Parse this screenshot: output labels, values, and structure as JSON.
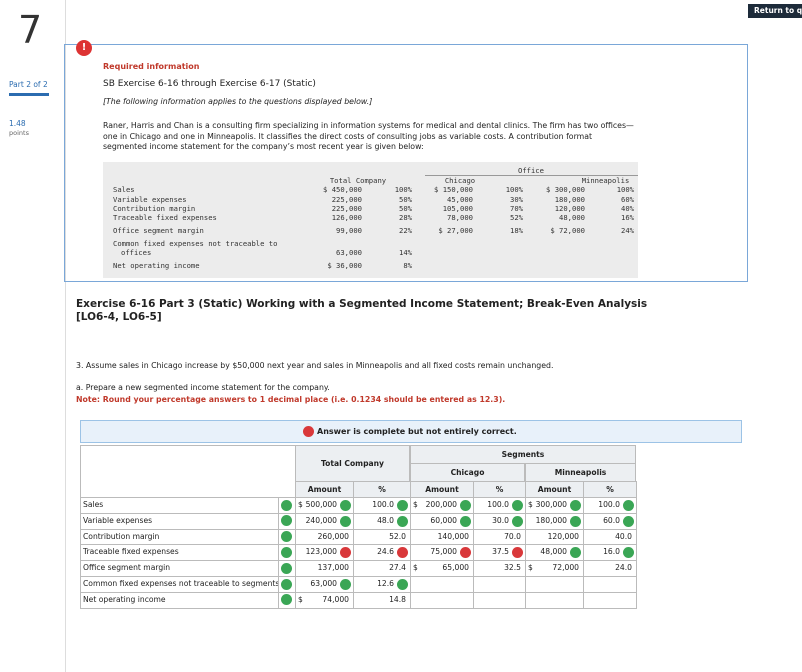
{
  "sidebar": {
    "question_number": "7",
    "part": "Part 2 of 2",
    "points_value": "1.48",
    "points_label": "points"
  },
  "header": {
    "return_button": "Return to qu"
  },
  "info": {
    "icon": "!",
    "label": "Required information",
    "title": "SB Exercise 6-16 through Exercise 6-17 (Static)",
    "subtitle": "[The following information applies to the questions displayed below.]",
    "paragraph": "Raner, Harris and Chan is a consulting firm specializing in information systems for medical and dental clinics. The firm has two offices—one in Chicago and one in Minneapolis. It classifies the direct costs of consulting jobs as variable costs. A contribution format segmented income statement for the company’s most recent year is given below:",
    "given_table": {
      "group_header": "Office",
      "headers": [
        "Total Company",
        "Chicago",
        "Minneapolis"
      ],
      "rows": [
        {
          "label": "Sales",
          "cells": [
            "$ 450,000",
            "100%",
            "$ 150,000",
            "100%",
            "$ 300,000",
            "100%"
          ]
        },
        {
          "label": "Variable expenses",
          "cells": [
            "225,000",
            "50%",
            "45,000",
            "30%",
            "180,000",
            "60%"
          ]
        },
        {
          "label": "Contribution margin",
          "cells": [
            "225,000",
            "50%",
            "105,000",
            "70%",
            "120,000",
            "40%"
          ]
        },
        {
          "label": "Traceable fixed expenses",
          "cells": [
            "126,000",
            "28%",
            "78,000",
            "52%",
            "48,000",
            "16%"
          ]
        },
        {
          "label": "Office segment margin",
          "cells": [
            "99,000",
            "22%",
            "$ 27,000",
            "18%",
            "$ 72,000",
            "24%"
          ]
        },
        {
          "label": "Common fixed expenses not traceable to offices",
          "cells": [
            "63,000",
            "14%"
          ]
        },
        {
          "label": "Net operating income",
          "cells": [
            "$ 36,000",
            "8%"
          ]
        }
      ]
    }
  },
  "exercise": {
    "title": "Exercise 6-16 Part 3 (Static) Working with a Segmented Income Statement; Break-Even Analysis [LO6-4, LO6-5]",
    "question": "3. Assume sales in Chicago increase by $50,000 next year and sales in Minneapolis and all fixed costs remain unchanged.",
    "prompt": "a. Prepare a new segmented income statement for the company.",
    "note": "Note: Round your percentage answers to 1 decimal place (i.e. 0.1234 should be entered as 12.3)."
  },
  "answer": {
    "banner": "Answer is complete but not entirely correct.",
    "table": {
      "group_header": "Segments",
      "headers": [
        "Total Company",
        "Chicago",
        "Minneapolis"
      ],
      "subheaders": [
        "Amount",
        "%",
        "Amount",
        "%",
        "Amount",
        "%"
      ],
      "rows": [
        {
          "label": "Sales",
          "status": "ok",
          "cells": [
            {
              "prefix": "$",
              "text": "500,000",
              "status": "ok"
            },
            {
              "text": "100.0",
              "status": "ok"
            },
            {
              "prefix": "$",
              "text": "200,000",
              "status": "ok"
            },
            {
              "text": "100.0",
              "status": "ok"
            },
            {
              "prefix": "$",
              "text": "300,000",
              "status": "ok"
            },
            {
              "text": "100.0",
              "status": "ok"
            }
          ]
        },
        {
          "label": "Variable expenses",
          "status": "ok",
          "cells": [
            {
              "text": "240,000",
              "status": "ok"
            },
            {
              "text": "48.0",
              "status": "ok"
            },
            {
              "text": "60,000",
              "status": "ok"
            },
            {
              "text": "30.0",
              "status": "ok"
            },
            {
              "text": "180,000",
              "status": "ok"
            },
            {
              "text": "60.0",
              "status": "ok"
            }
          ]
        },
        {
          "label": "Contribution margin",
          "status": "ok",
          "cells": [
            {
              "text": "260,000"
            },
            {
              "text": "52.0"
            },
            {
              "text": "140,000"
            },
            {
              "text": "70.0"
            },
            {
              "text": "120,000"
            },
            {
              "text": "40.0"
            }
          ]
        },
        {
          "label": "Traceable fixed expenses",
          "status": "ok",
          "cells": [
            {
              "text": "123,000",
              "status": "bad"
            },
            {
              "text": "24.6",
              "status": "bad"
            },
            {
              "text": "75,000",
              "status": "bad"
            },
            {
              "text": "37.5",
              "status": "bad"
            },
            {
              "text": "48,000",
              "status": "ok"
            },
            {
              "text": "16.0",
              "status": "ok"
            }
          ]
        },
        {
          "label": "Office segment margin",
          "status": "ok",
          "cells": [
            {
              "text": "137,000"
            },
            {
              "text": "27.4"
            },
            {
              "prefix": "$",
              "text": "65,000"
            },
            {
              "text": "32.5"
            },
            {
              "prefix": "$",
              "text": "72,000"
            },
            {
              "text": "24.0"
            }
          ]
        },
        {
          "label": "Common fixed expenses not traceable to segments",
          "status": "ok",
          "cells": [
            {
              "text": "63,000",
              "status": "ok"
            },
            {
              "text": "12.6",
              "status": "ok"
            }
          ]
        },
        {
          "label": "Net operating income",
          "status": "ok",
          "cells": [
            {
              "prefix": "$",
              "text": "74,000"
            },
            {
              "text": "14.8"
            }
          ]
        }
      ]
    }
  }
}
